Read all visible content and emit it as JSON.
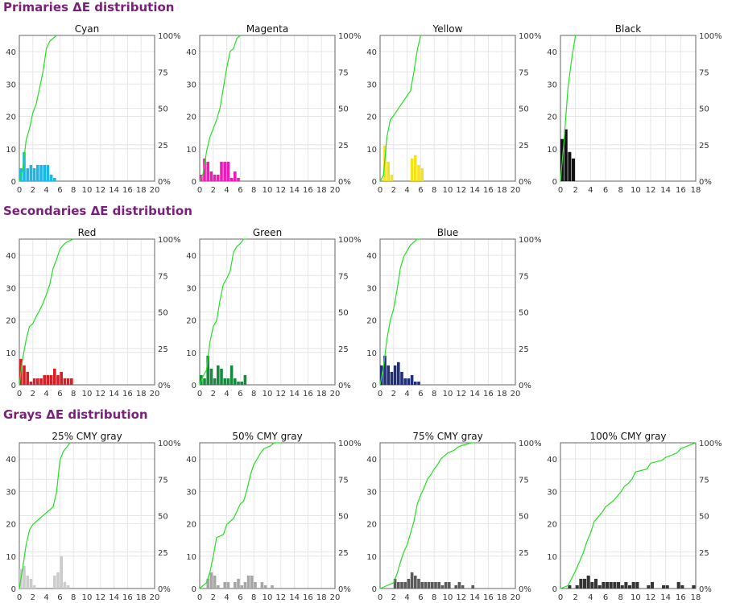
{
  "sections": [
    {
      "title": "Primaries ΔE distribution"
    },
    {
      "title": "Secondaries ΔE distribution"
    },
    {
      "title": "Grays ΔE distribution"
    }
  ],
  "colors": {
    "section_title": "#7a1f7a",
    "cumulative_line": "#22e022",
    "grid": "#e6e6e6",
    "axis": "#666666"
  },
  "chart_data": [
    {
      "type": "bar",
      "title": "Cyan",
      "xlim": [
        0,
        20
      ],
      "ylim": [
        0,
        45
      ],
      "y2lim": [
        0,
        100
      ],
      "x_ticks": [
        0,
        2,
        4,
        6,
        8,
        10,
        12,
        14,
        16,
        18,
        20
      ],
      "y_ticks": [
        0,
        10,
        20,
        30,
        40
      ],
      "y2_ticks": [
        "0%",
        "25",
        "50",
        "75",
        "100%"
      ],
      "bar_color": "#1ab8e8",
      "bin_width": 0.5,
      "x": [
        0,
        0.5,
        1,
        1.5,
        2,
        2.5,
        3,
        3.5,
        4,
        4.5,
        5
      ],
      "values": [
        4,
        9,
        4,
        5,
        4,
        5,
        5,
        5,
        5,
        2,
        1
      ],
      "cumulative": {
        "x": [
          0,
          0.5,
          1,
          1.5,
          2,
          2.5,
          3,
          3.5,
          4,
          4.5,
          5,
          5.5
        ],
        "y": [
          0,
          8,
          28,
          36,
          47,
          53,
          64,
          75,
          91,
          96,
          98,
          100
        ]
      }
    },
    {
      "type": "bar",
      "title": "Magenta",
      "xlim": [
        0,
        20
      ],
      "ylim": [
        0,
        45
      ],
      "y2lim": [
        0,
        100
      ],
      "x_ticks": [
        0,
        2,
        4,
        6,
        8,
        10,
        12,
        14,
        16,
        18,
        20
      ],
      "y_ticks": [
        0,
        10,
        20,
        30,
        40
      ],
      "y2_ticks": [
        "0%",
        "25",
        "50",
        "75",
        "100%"
      ],
      "bar_color": "#f01ab8",
      "bin_width": 0.5,
      "x": [
        0,
        0.5,
        1,
        1.5,
        2,
        2.5,
        3,
        3.5,
        4,
        4.5,
        5,
        5.5
      ],
      "values": [
        2,
        7,
        6,
        3,
        2,
        2,
        6,
        6,
        6,
        1,
        3,
        1
      ],
      "cumulative": {
        "x": [
          0,
          0.5,
          1,
          1.5,
          2,
          2.5,
          3,
          3.5,
          4,
          4.5,
          5,
          5.5,
          6
        ],
        "y": [
          0,
          5,
          20,
          30,
          36,
          42,
          50,
          64,
          78,
          89,
          91,
          98,
          100
        ]
      }
    },
    {
      "type": "bar",
      "title": "Yellow",
      "xlim": [
        0,
        20
      ],
      "ylim": [
        0,
        45
      ],
      "y2lim": [
        0,
        100
      ],
      "x_ticks": [
        0,
        2,
        4,
        6,
        8,
        10,
        12,
        14,
        16,
        18,
        20
      ],
      "y_ticks": [
        0,
        10,
        20,
        30,
        40
      ],
      "y2_ticks": [
        "0%",
        "25",
        "50",
        "75",
        "100%"
      ],
      "bar_color": "#f6e21a",
      "bin_width": 0.5,
      "x": [
        0.5,
        1,
        1.5,
        4.5,
        5,
        5.5,
        6
      ],
      "values": [
        11,
        6,
        2,
        7,
        8,
        5,
        4
      ],
      "cumulative": {
        "x": [
          0,
          0.5,
          1,
          1.5,
          2,
          4.5,
          5,
          5.5,
          6
        ],
        "y": [
          0,
          4,
          30,
          42,
          45,
          62,
          75,
          90,
          100
        ]
      }
    },
    {
      "type": "bar",
      "title": "Black",
      "xlim": [
        0,
        18
      ],
      "ylim": [
        0,
        45
      ],
      "y2lim": [
        0,
        100
      ],
      "x_ticks": [
        0,
        2,
        4,
        6,
        8,
        10,
        12,
        14,
        16,
        18
      ],
      "y_ticks": [
        0,
        10,
        20,
        30,
        40
      ],
      "y2_ticks": [
        "0%",
        "25",
        "50",
        "75",
        "100%"
      ],
      "bar_color": "#111111",
      "bin_width": 0.5,
      "x": [
        0,
        0.5,
        1,
        1.5
      ],
      "values": [
        13,
        16,
        9,
        7
      ],
      "cumulative": {
        "x": [
          0,
          0.5,
          1,
          1.5,
          2
        ],
        "y": [
          0,
          29,
          64,
          84,
          100
        ]
      }
    },
    {
      "type": "bar",
      "title": "Red",
      "xlim": [
        0,
        20
      ],
      "ylim": [
        0,
        45
      ],
      "y2lim": [
        0,
        100
      ],
      "x_ticks": [
        0,
        2,
        4,
        6,
        8,
        10,
        12,
        14,
        16,
        18,
        20
      ],
      "y_ticks": [
        0,
        10,
        20,
        30,
        40
      ],
      "y2_ticks": [
        "0%",
        "25",
        "50",
        "75",
        "100%"
      ],
      "bar_color": "#d61f26",
      "bin_width": 0.5,
      "x": [
        0,
        0.5,
        1,
        1.5,
        2,
        2.5,
        3,
        3.5,
        4,
        4.5,
        5,
        5.5,
        6,
        6.5,
        7,
        7.5
      ],
      "values": [
        8,
        6,
        4,
        1,
        2,
        2,
        2,
        3,
        3,
        3,
        5,
        3,
        4,
        2,
        2,
        2
      ],
      "cumulative": {
        "x": [
          0,
          0.5,
          1,
          1.5,
          2,
          2.5,
          3,
          3.5,
          4,
          4.5,
          5,
          5.5,
          6,
          6.5,
          7,
          7.5,
          8
        ],
        "y": [
          0,
          18,
          31,
          40,
          42,
          47,
          51,
          56,
          62,
          69,
          80,
          86,
          93,
          96,
          98,
          99,
          100
        ]
      }
    },
    {
      "type": "bar",
      "title": "Green",
      "xlim": [
        0,
        20
      ],
      "ylim": [
        0,
        45
      ],
      "y2lim": [
        0,
        100
      ],
      "x_ticks": [
        0,
        2,
        4,
        6,
        8,
        10,
        12,
        14,
        16,
        18,
        20
      ],
      "y_ticks": [
        0,
        10,
        20,
        30,
        40
      ],
      "y2_ticks": [
        "0%",
        "25",
        "50",
        "75",
        "100%"
      ],
      "bar_color": "#178a40",
      "bin_width": 0.5,
      "x": [
        0,
        0.5,
        1,
        1.5,
        2,
        2.5,
        3,
        3.5,
        4,
        4.5,
        5,
        5.5,
        6,
        6.5
      ],
      "values": [
        3,
        2,
        9,
        5,
        2,
        6,
        5,
        2,
        2,
        6,
        2,
        1,
        1,
        3
      ],
      "cumulative": {
        "x": [
          0,
          0.5,
          1,
          1.5,
          2,
          2.5,
          3,
          3.5,
          4,
          4.5,
          5,
          5.5,
          6,
          6.5,
          7
        ],
        "y": [
          0,
          6,
          10,
          29,
          40,
          44,
          58,
          69,
          73,
          78,
          91,
          95,
          97,
          100,
          100
        ]
      }
    },
    {
      "type": "bar",
      "title": "Blue",
      "xlim": [
        0,
        20
      ],
      "ylim": [
        0,
        45
      ],
      "y2lim": [
        0,
        100
      ],
      "x_ticks": [
        0,
        2,
        4,
        6,
        8,
        10,
        12,
        14,
        16,
        18,
        20
      ],
      "y_ticks": [
        0,
        10,
        20,
        30,
        40
      ],
      "y2_ticks": [
        "0%",
        "25",
        "50",
        "75",
        "100%"
      ],
      "bar_color": "#1f2f7a",
      "bin_width": 0.5,
      "x": [
        0,
        0.5,
        1,
        1.5,
        2,
        2.5,
        3,
        3.5,
        4,
        4.5,
        5,
        5.5
      ],
      "values": [
        6,
        9,
        6,
        4,
        6,
        7,
        4,
        2,
        2,
        3,
        1,
        1
      ],
      "cumulative": {
        "x": [
          0,
          0.5,
          1,
          1.5,
          2,
          2.5,
          3,
          3.5,
          4,
          4.5,
          5,
          5.5,
          6
        ],
        "y": [
          0,
          12,
          31,
          44,
          52,
          65,
          80,
          88,
          92,
          96,
          98,
          100,
          100
        ]
      }
    },
    {
      "type": "bar",
      "title": "25% CMY gray",
      "xlim": [
        0,
        20
      ],
      "ylim": [
        0,
        45
      ],
      "y2lim": [
        0,
        100
      ],
      "x_ticks": [
        0,
        2,
        4,
        6,
        8,
        10,
        12,
        14,
        16,
        18,
        20
      ],
      "y_ticks": [
        0,
        10,
        20,
        30,
        40
      ],
      "y2_ticks": [
        "0%",
        "25",
        "50",
        "75",
        "100%"
      ],
      "bar_color": "#cccccc",
      "bin_width": 0.5,
      "x": [
        0,
        0.5,
        1,
        1.5,
        2,
        5,
        5.5,
        6,
        6.5,
        7
      ],
      "values": [
        6,
        7,
        4,
        3,
        1,
        4,
        5,
        10,
        2,
        1
      ],
      "cumulative": {
        "x": [
          0,
          0.5,
          1,
          1.5,
          2,
          5,
          5.5,
          6,
          6.5,
          7,
          7.5
        ],
        "y": [
          0,
          14,
          30,
          40,
          44,
          56,
          66,
          88,
          94,
          97,
          100
        ]
      }
    },
    {
      "type": "bar",
      "title": "50% CMY gray",
      "xlim": [
        0,
        20
      ],
      "ylim": [
        0,
        45
      ],
      "y2lim": [
        0,
        100
      ],
      "x_ticks": [
        0,
        2,
        4,
        6,
        8,
        10,
        12,
        14,
        16,
        18,
        20
      ],
      "y_ticks": [
        0,
        10,
        20,
        30,
        40
      ],
      "y2_ticks": [
        "0%",
        "25",
        "50",
        "75",
        "100%"
      ],
      "bar_color": "#a6a6a6",
      "bin_width": 0.5,
      "x": [
        1,
        1.5,
        2,
        2.5,
        3.5,
        4,
        5,
        5.5,
        6,
        6.5,
        7,
        7.5,
        8,
        9,
        9.5,
        10.5
      ],
      "values": [
        3,
        5,
        4,
        1,
        2,
        2,
        2,
        3,
        1,
        2,
        4,
        4,
        2,
        2,
        1,
        1
      ],
      "cumulative": {
        "x": [
          0,
          1,
          1.5,
          2,
          2.5,
          3.5,
          4,
          5,
          5.5,
          6,
          6.5,
          7,
          7.5,
          8,
          9,
          9.5,
          10.5,
          11,
          12
        ],
        "y": [
          0,
          4,
          11,
          22,
          35,
          37,
          44,
          48,
          53,
          58,
          60,
          68,
          78,
          85,
          93,
          96,
          98,
          100,
          100
        ]
      }
    },
    {
      "type": "bar",
      "title": "75% CMY gray",
      "xlim": [
        0,
        20
      ],
      "ylim": [
        0,
        45
      ],
      "y2lim": [
        0,
        100
      ],
      "x_ticks": [
        0,
        2,
        4,
        6,
        8,
        10,
        12,
        14,
        16,
        18,
        20
      ],
      "y_ticks": [
        0,
        10,
        20,
        30,
        40
      ],
      "y2_ticks": [
        "0%",
        "25",
        "50",
        "75",
        "100%"
      ],
      "bar_color": "#5a5a5a",
      "bin_width": 0.5,
      "x": [
        2,
        2.5,
        3,
        3.5,
        4,
        4.5,
        5,
        5.5,
        6,
        6.5,
        7,
        7.5,
        8,
        8.5,
        9,
        9.5,
        10,
        11,
        11.5,
        12,
        13.5
      ],
      "values": [
        3,
        2,
        2,
        2,
        3,
        5,
        4,
        3,
        2,
        2,
        2,
        2,
        2,
        2,
        1,
        2,
        2,
        1,
        2,
        1,
        1
      ],
      "cumulative": {
        "x": [
          0,
          2,
          2.5,
          3,
          3.5,
          4,
          4.5,
          5,
          5.5,
          6,
          6.5,
          7,
          7.5,
          8,
          8.5,
          9,
          9.5,
          10,
          11,
          11.5,
          12,
          13.5,
          14
        ],
        "y": [
          0,
          4,
          10,
          18,
          25,
          30,
          38,
          46,
          58,
          64,
          69,
          75,
          78,
          82,
          85,
          89,
          91,
          93,
          95,
          97,
          98,
          100,
          100
        ]
      }
    },
    {
      "type": "bar",
      "title": "100% CMY gray",
      "xlim": [
        0,
        18
      ],
      "ylim": [
        0,
        45
      ],
      "y2lim": [
        0,
        100
      ],
      "x_ticks": [
        0,
        2,
        4,
        6,
        8,
        10,
        12,
        14,
        16,
        18
      ],
      "y_ticks": [
        0,
        10,
        20,
        30,
        40
      ],
      "y2_ticks": [
        "0%",
        "25",
        "50",
        "75",
        "100%"
      ],
      "bar_color": "#333333",
      "bin_width": 0.5,
      "x": [
        1,
        2,
        2.5,
        3,
        3.5,
        4,
        4.5,
        5,
        5.5,
        6,
        6.5,
        7,
        7.5,
        8,
        8.5,
        9,
        9.5,
        10,
        11.5,
        12,
        13.5,
        14,
        15.5,
        16,
        17.5
      ],
      "values": [
        1,
        1,
        3,
        3,
        4,
        2,
        3,
        1,
        2,
        2,
        2,
        2,
        2,
        1,
        2,
        1,
        2,
        2,
        1,
        2,
        1,
        1,
        2,
        1,
        1
      ],
      "cumulative": {
        "x": [
          0,
          1,
          2,
          2.5,
          3,
          3.5,
          4,
          4.5,
          5,
          5.5,
          6,
          6.5,
          7,
          7.5,
          8,
          8.5,
          9,
          9.5,
          10,
          11.5,
          12,
          13.5,
          14,
          15.5,
          16,
          17,
          17.5,
          18
        ],
        "y": [
          0,
          2,
          12,
          18,
          24,
          32,
          38,
          46,
          49,
          52,
          56,
          58,
          60,
          63,
          66,
          70,
          72,
          75,
          80,
          82,
          86,
          88,
          90,
          93,
          96,
          98,
          99,
          100
        ]
      }
    }
  ]
}
